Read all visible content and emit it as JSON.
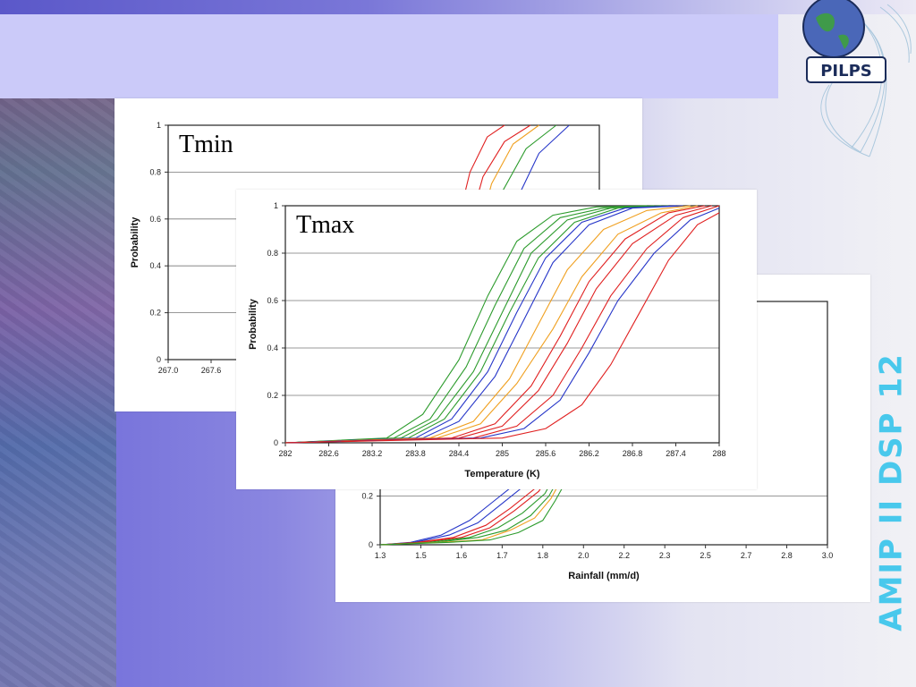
{
  "slide": {
    "vertical_text": "AMIP II DSP 12",
    "logo_text": "PILPS",
    "colors": {
      "accent_text": "#48c8ec",
      "title_band": "#cbcaf9",
      "background": "#8a86e0"
    }
  },
  "chart_data": [
    {
      "id": "tmin",
      "type": "line",
      "label": "Tmin",
      "title": "",
      "ylabel": "Probability",
      "xlabel": "",
      "ylim": [
        0,
        1
      ],
      "y_ticks": [
        "0",
        "0.2",
        "0.4",
        "0.6",
        "0.8",
        "1"
      ],
      "x_ticks_visible": [
        "267.0",
        "267.6"
      ],
      "grid": true,
      "series_colors": [
        "red",
        "orange",
        "green",
        "blue"
      ],
      "series": [
        {
          "color": "red",
          "x": [
            0.62,
            0.66,
            0.7,
            0.74,
            0.78
          ],
          "y": [
            0.0,
            0.5,
            0.8,
            0.95,
            1.0
          ]
        },
        {
          "color": "red",
          "x": [
            0.64,
            0.68,
            0.73,
            0.78,
            0.84
          ],
          "y": [
            0.0,
            0.45,
            0.78,
            0.93,
            1.0
          ]
        },
        {
          "color": "orange",
          "x": [
            0.66,
            0.7,
            0.75,
            0.8,
            0.86
          ],
          "y": [
            0.0,
            0.4,
            0.75,
            0.92,
            1.0
          ]
        },
        {
          "color": "green",
          "x": [
            0.67,
            0.72,
            0.77,
            0.83,
            0.9
          ],
          "y": [
            0.0,
            0.35,
            0.7,
            0.9,
            1.0
          ]
        },
        {
          "color": "blue",
          "x": [
            0.69,
            0.74,
            0.8,
            0.86,
            0.93
          ],
          "y": [
            0.0,
            0.3,
            0.65,
            0.88,
            1.0
          ]
        }
      ]
    },
    {
      "id": "tmax",
      "type": "line",
      "label": "Tmax",
      "title": "",
      "ylabel": "Probability",
      "xlabel": "Temperature (K)",
      "xlim": [
        282,
        288
      ],
      "ylim": [
        0,
        1
      ],
      "x_ticks": [
        "282",
        "282.6",
        "283.2",
        "283.8",
        "284.4",
        "285",
        "285.6",
        "286.2",
        "286.8",
        "287.4",
        "288"
      ],
      "y_ticks": [
        "0",
        "0.2",
        "0.4",
        "0.6",
        "0.8",
        "1"
      ],
      "grid": true,
      "series": [
        {
          "color": "green",
          "x": [
            282.0,
            283.4,
            283.9,
            284.4,
            284.8,
            285.2,
            285.7,
            286.3,
            287.0
          ],
          "y": [
            0.0,
            0.02,
            0.12,
            0.35,
            0.62,
            0.85,
            0.96,
            0.995,
            1.0
          ]
        },
        {
          "color": "green",
          "x": [
            282.0,
            283.5,
            284.0,
            284.5,
            284.9,
            285.3,
            285.8,
            286.4,
            287.1
          ],
          "y": [
            0.0,
            0.02,
            0.1,
            0.32,
            0.58,
            0.82,
            0.95,
            0.99,
            1.0
          ]
        },
        {
          "color": "green",
          "x": [
            282.0,
            283.6,
            284.1,
            284.6,
            285.0,
            285.4,
            285.9,
            286.5,
            287.2
          ],
          "y": [
            0.0,
            0.02,
            0.1,
            0.3,
            0.55,
            0.8,
            0.94,
            0.99,
            1.0
          ]
        },
        {
          "color": "green",
          "x": [
            282.0,
            283.7,
            284.2,
            284.7,
            285.1,
            285.5,
            286.0,
            286.6,
            287.3
          ],
          "y": [
            0.0,
            0.02,
            0.1,
            0.3,
            0.55,
            0.78,
            0.93,
            0.99,
            1.0
          ]
        },
        {
          "color": "blue",
          "x": [
            282.0,
            283.8,
            284.3,
            284.8,
            285.2,
            285.6,
            286.1,
            286.7,
            287.4
          ],
          "y": [
            0.0,
            0.02,
            0.1,
            0.3,
            0.55,
            0.78,
            0.93,
            0.99,
            1.0
          ]
        },
        {
          "color": "blue",
          "x": [
            282.0,
            283.9,
            284.4,
            284.9,
            285.3,
            285.7,
            286.2,
            286.8,
            287.5
          ],
          "y": [
            0.0,
            0.02,
            0.09,
            0.28,
            0.52,
            0.76,
            0.92,
            0.99,
            1.0
          ]
        },
        {
          "color": "orange",
          "x": [
            282.0,
            284.0,
            284.6,
            285.1,
            285.5,
            285.9,
            286.4,
            287.0,
            287.6
          ],
          "y": [
            0.0,
            0.02,
            0.09,
            0.27,
            0.5,
            0.73,
            0.9,
            0.98,
            1.0
          ]
        },
        {
          "color": "orange",
          "x": [
            282.0,
            284.1,
            284.7,
            285.2,
            285.7,
            286.1,
            286.6,
            287.2,
            287.7
          ],
          "y": [
            0.0,
            0.02,
            0.08,
            0.25,
            0.48,
            0.7,
            0.88,
            0.97,
            1.0
          ]
        },
        {
          "color": "red",
          "x": [
            282.0,
            284.3,
            284.9,
            285.4,
            285.8,
            286.2,
            286.7,
            287.3,
            287.8
          ],
          "y": [
            0.0,
            0.02,
            0.08,
            0.24,
            0.45,
            0.68,
            0.86,
            0.97,
            1.0
          ]
        },
        {
          "color": "red",
          "x": [
            282.0,
            284.4,
            285.0,
            285.5,
            285.9,
            286.3,
            286.8,
            287.4,
            287.9
          ],
          "y": [
            0.0,
            0.02,
            0.07,
            0.22,
            0.42,
            0.65,
            0.84,
            0.96,
            1.0
          ]
        },
        {
          "color": "red",
          "x": [
            282.0,
            284.6,
            285.2,
            285.7,
            286.1,
            286.5,
            287.0,
            287.5,
            288.0
          ],
          "y": [
            0.0,
            0.02,
            0.07,
            0.2,
            0.4,
            0.62,
            0.82,
            0.95,
            1.0
          ]
        },
        {
          "color": "blue",
          "x": [
            282.0,
            284.7,
            285.3,
            285.8,
            286.2,
            286.6,
            287.1,
            287.6,
            288.0
          ],
          "y": [
            0.0,
            0.02,
            0.06,
            0.18,
            0.38,
            0.6,
            0.8,
            0.94,
            0.99
          ]
        },
        {
          "color": "red",
          "x": [
            282.0,
            285.0,
            285.6,
            286.1,
            286.5,
            286.9,
            287.3,
            287.7,
            288.0
          ],
          "y": [
            0.0,
            0.02,
            0.06,
            0.16,
            0.33,
            0.55,
            0.77,
            0.92,
            0.97
          ]
        }
      ]
    },
    {
      "id": "rainfall",
      "type": "line",
      "label": "",
      "title": "",
      "ylabel": "",
      "xlabel": "Rainfall (mm/d)",
      "ylim": [
        0,
        1
      ],
      "x_ticks": [
        "1.3",
        "1.5",
        "1.6",
        "1.7",
        "1.8",
        "2.0",
        "2.2",
        "2.3",
        "2.5",
        "2.7",
        "2.8",
        "3.0"
      ],
      "y_ticks_visible": [
        "0",
        "0.2"
      ],
      "grid": true,
      "series": [
        {
          "color": "blue",
          "x": [
            1.3,
            1.45,
            1.55,
            1.62,
            1.68,
            1.74,
            1.8,
            1.86
          ],
          "y": [
            0.0,
            0.01,
            0.04,
            0.1,
            0.18,
            0.26,
            0.36,
            0.46
          ]
        },
        {
          "color": "blue",
          "x": [
            1.3,
            1.47,
            1.57,
            1.64,
            1.7,
            1.76,
            1.82,
            1.88
          ],
          "y": [
            0.0,
            0.01,
            0.04,
            0.09,
            0.17,
            0.25,
            0.35,
            0.45
          ]
        },
        {
          "color": "red",
          "x": [
            1.3,
            1.48,
            1.58,
            1.66,
            1.72,
            1.78,
            1.84,
            1.9
          ],
          "y": [
            0.0,
            0.01,
            0.03,
            0.08,
            0.15,
            0.23,
            0.33,
            0.43
          ]
        },
        {
          "color": "red",
          "x": [
            1.3,
            1.5,
            1.6,
            1.67,
            1.73,
            1.79,
            1.85,
            1.91
          ],
          "y": [
            0.0,
            0.01,
            0.03,
            0.07,
            0.14,
            0.22,
            0.31,
            0.41
          ]
        },
        {
          "color": "green",
          "x": [
            1.3,
            1.52,
            1.62,
            1.69,
            1.75,
            1.81,
            1.87,
            1.93
          ],
          "y": [
            0.0,
            0.01,
            0.03,
            0.07,
            0.13,
            0.21,
            0.3,
            0.4
          ]
        },
        {
          "color": "green",
          "x": [
            1.3,
            1.54,
            1.64,
            1.71,
            1.77,
            1.83,
            1.89,
            1.95
          ],
          "y": [
            0.0,
            0.01,
            0.03,
            0.06,
            0.12,
            0.2,
            0.29,
            0.39
          ]
        },
        {
          "color": "orange",
          "x": [
            1.3,
            1.55,
            1.65,
            1.72,
            1.78,
            1.84,
            1.9,
            1.96
          ],
          "y": [
            0.0,
            0.01,
            0.02,
            0.06,
            0.11,
            0.19,
            0.28,
            0.38
          ]
        },
        {
          "color": "green",
          "x": [
            1.3,
            1.57,
            1.67,
            1.74,
            1.8,
            1.86,
            1.92,
            1.98
          ],
          "y": [
            0.0,
            0.01,
            0.02,
            0.05,
            0.1,
            0.18,
            0.27,
            0.37
          ]
        }
      ]
    }
  ]
}
